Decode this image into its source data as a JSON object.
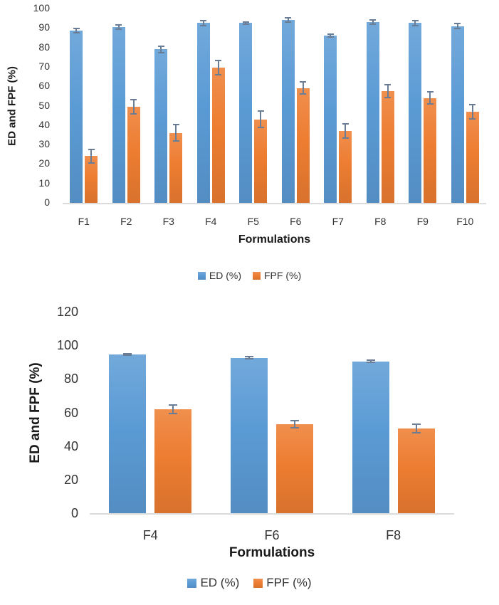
{
  "page": {
    "background": "#ffffff"
  },
  "colors": {
    "ed_series": "#5b9bd5",
    "fpf_series": "#ed7d31",
    "error_bar": "#6b7c95",
    "axis_line": "#dcdcdc",
    "tick_text": "#333333",
    "title_text": "#1a1a1a"
  },
  "chart_data": [
    {
      "type": "bar",
      "title": "",
      "categories": [
        "F1",
        "F2",
        "F3",
        "F4",
        "F5",
        "F6",
        "F7",
        "F8",
        "F9",
        "F10"
      ],
      "series": [
        {
          "name": "ED (%)",
          "color": "#5b9bd5",
          "values": [
            88.5,
            90.5,
            79,
            92.5,
            92.5,
            94,
            86,
            93,
            92.5,
            91
          ],
          "errors": [
            1.5,
            1.5,
            2,
            1.5,
            1,
            1.5,
            1,
            1.5,
            1.5,
            1.5
          ]
        },
        {
          "name": "FPF (%)",
          "color": "#ed7d31",
          "values": [
            24,
            49.5,
            36,
            69.5,
            43,
            59,
            37,
            57.5,
            54,
            47
          ],
          "errors": [
            4,
            4,
            4.5,
            4,
            4.5,
            3.5,
            4,
            3.5,
            3.5,
            4
          ]
        }
      ],
      "xlabel": "Formulations",
      "ylabel": "ED and FPF (%)",
      "ylim": [
        0,
        100
      ],
      "yticks": [
        "0",
        "10",
        "20",
        "30",
        "40",
        "50",
        "60",
        "70",
        "80",
        "90",
        "100"
      ],
      "grid": false,
      "legend_position": "bottom",
      "error_bars": true
    },
    {
      "type": "bar",
      "title": "",
      "categories": [
        "F4",
        "F6",
        "F8"
      ],
      "series": [
        {
          "name": "ED (%)",
          "color": "#5b9bd5",
          "values": [
            94.5,
            92.5,
            90.5
          ],
          "errors": [
            1,
            1,
            1
          ]
        },
        {
          "name": "FPF (%)",
          "color": "#ed7d31",
          "values": [
            62,
            53,
            50.5
          ],
          "errors": [
            3,
            2.5,
            3
          ]
        }
      ],
      "xlabel": "Formulations",
      "ylabel": "ED and FPF (%)",
      "ylim": [
        0,
        120
      ],
      "yticks": [
        "0",
        "20",
        "40",
        "60",
        "80",
        "100",
        "120"
      ],
      "grid": false,
      "legend_position": "bottom",
      "error_bars": true
    }
  ]
}
